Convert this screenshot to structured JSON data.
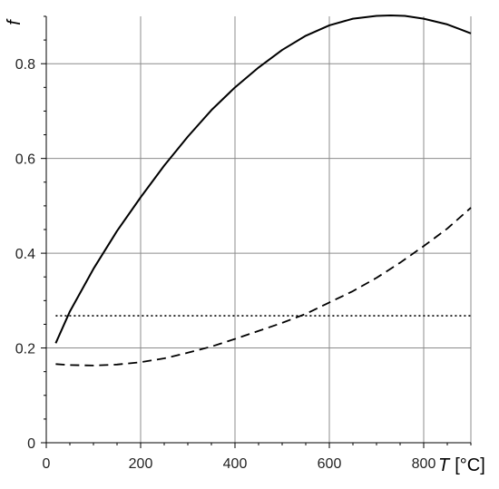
{
  "chart_data": {
    "type": "line",
    "title": "",
    "xlabel": "T",
    "xunit": "[°C]",
    "ylabel": "f",
    "xlim": [
      0,
      900
    ],
    "ylim": [
      0,
      0.9
    ],
    "xticks": [
      0,
      200,
      400,
      600,
      800
    ],
    "xtick_labels": [
      "0",
      "200",
      "400",
      "600",
      "800"
    ],
    "yticks": [
      0,
      0.2,
      0.4,
      0.6,
      0.8
    ],
    "ytick_labels": [
      "0",
      "0.2",
      "0.4",
      "0.6",
      "0.8"
    ],
    "grid": true,
    "series": [
      {
        "style": "solid",
        "color": "#000000",
        "x": [
          20,
          50,
          100,
          150,
          200,
          250,
          300,
          350,
          400,
          450,
          500,
          550,
          600,
          650,
          700,
          730,
          760,
          800,
          850,
          900
        ],
        "y": [
          0.21,
          0.277,
          0.367,
          0.447,
          0.518,
          0.585,
          0.646,
          0.702,
          0.75,
          0.792,
          0.829,
          0.859,
          0.881,
          0.895,
          0.901,
          0.902,
          0.901,
          0.895,
          0.883,
          0.864
        ]
      },
      {
        "style": "dashed",
        "color": "#000000",
        "x": [
          20,
          50,
          100,
          150,
          200,
          250,
          300,
          350,
          400,
          450,
          500,
          550,
          600,
          650,
          700,
          750,
          800,
          850,
          900
        ],
        "y": [
          0.166,
          0.164,
          0.163,
          0.165,
          0.17,
          0.178,
          0.19,
          0.203,
          0.219,
          0.236,
          0.253,
          0.272,
          0.296,
          0.32,
          0.348,
          0.38,
          0.415,
          0.452,
          0.496
        ]
      },
      {
        "style": "dotted",
        "color": "#000000",
        "x": [
          20,
          900
        ],
        "y": [
          0.268,
          0.268
        ]
      }
    ]
  }
}
